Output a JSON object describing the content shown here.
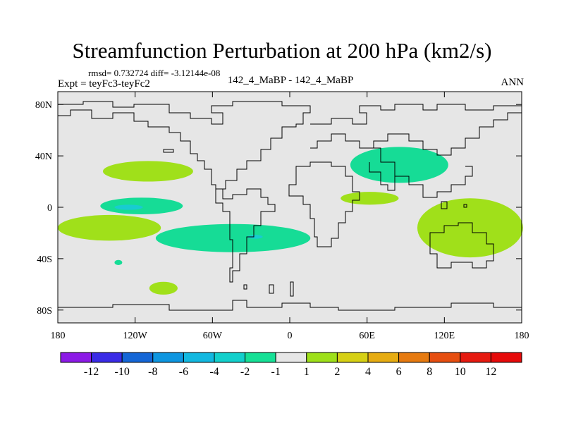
{
  "chart_data": {
    "type": "contour-map",
    "title": "Streamfunction Perturbation at 200 hPa (km2/s)",
    "stats": "rmsd= 0.732724 diff= -3.12144e-08",
    "experiment": "Expt = teyFc3-teyFc2",
    "case": "142_4_MaBP - 142_4_MaBP",
    "season": "ANN",
    "x_ticks": [
      "180",
      "120W",
      "60W",
      "0",
      "60E",
      "120E",
      "180"
    ],
    "x_tick_values": [
      -180,
      -120,
      -60,
      0,
      60,
      120,
      180
    ],
    "y_ticks": [
      "80N",
      "40N",
      "0",
      "40S",
      "80S"
    ],
    "y_tick_values": [
      80,
      40,
      0,
      -40,
      -80
    ],
    "xlim": [
      -180,
      180
    ],
    "ylim": [
      -90,
      90
    ],
    "colorbar": {
      "labels": [
        "-12",
        "-10",
        "-8",
        "-6",
        "-4",
        "-2",
        "-1",
        "1",
        "2",
        "4",
        "6",
        "8",
        "10",
        "12"
      ],
      "colors": [
        "#8c1ae6",
        "#3a2be6",
        "#1466d6",
        "#0e96e0",
        "#12b8e0",
        "#12d0cc",
        "#16e096",
        "#e6e6e6",
        "#9ee01a",
        "#d6d014",
        "#e6ac12",
        "#e67a10",
        "#e64e10",
        "#e61a10",
        "#e60a0a"
      ]
    },
    "regions": [
      {
        "center": [
          -110,
          28
        ],
        "size": [
          70,
          16
        ],
        "sign": "positive",
        "level": "1 to 2",
        "color": "#a0e01a"
      },
      {
        "center": [
          -115,
          1
        ],
        "size": [
          64,
          13
        ],
        "sign": "negative",
        "level": "-2 to -1",
        "color": "#16dc96"
      },
      {
        "center": [
          -125,
          0
        ],
        "size": [
          22,
          4
        ],
        "sign": "negative",
        "level": "-4 to -2",
        "color": "#18ccd0"
      },
      {
        "center": [
          -140,
          -16
        ],
        "size": [
          80,
          20
        ],
        "sign": "positive",
        "level": "1 to 2",
        "color": "#a0e01a"
      },
      {
        "center": [
          -44,
          -24
        ],
        "size": [
          120,
          22
        ],
        "sign": "negative",
        "level": "-2 to -1",
        "color": "#16dc96"
      },
      {
        "center": [
          -27,
          -23
        ],
        "size": [
          12,
          3
        ],
        "sign": "negative",
        "level": "-4 to -2",
        "color": "#18ccd0"
      },
      {
        "center": [
          -133,
          -43
        ],
        "size": [
          6,
          4
        ],
        "sign": "negative",
        "level": "-2 to -1",
        "color": "#16dc96"
      },
      {
        "center": [
          -98,
          -63
        ],
        "size": [
          22,
          10
        ],
        "sign": "positive",
        "level": "1 to 2",
        "color": "#a0e01a"
      },
      {
        "center": [
          85,
          33
        ],
        "size": [
          76,
          28
        ],
        "sign": "negative",
        "level": "-2 to -1",
        "color": "#16dc96"
      },
      {
        "center": [
          62,
          7
        ],
        "size": [
          45,
          10
        ],
        "sign": "positive",
        "level": "1 to 2",
        "color": "#a0e01a"
      },
      {
        "center": [
          140,
          -16
        ],
        "size": [
          82,
          46
        ],
        "sign": "positive",
        "level": "1 to 2",
        "color": "#a0e01a"
      }
    ]
  }
}
